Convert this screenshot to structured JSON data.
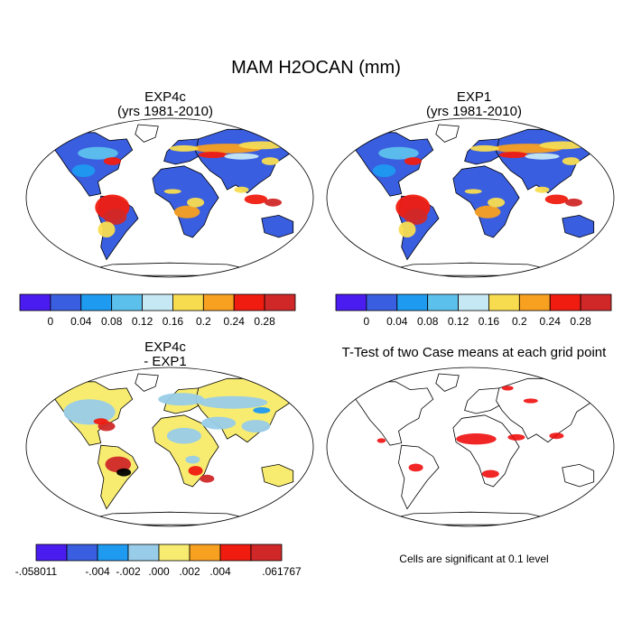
{
  "page": {
    "title": "MAM H2OCAN (mm)"
  },
  "chart_data": [
    {
      "type": "map",
      "title": "EXP4c",
      "subtitle": "(yrs 1981-2010)",
      "colorbar": {
        "colors": [
          "#4a1cf0",
          "#3a5ee0",
          "#1e9af0",
          "#5cc0ec",
          "#c6e8f4",
          "#f8dc50",
          "#f8a020",
          "#f01c10",
          "#d02828"
        ],
        "tick_labels": [
          "0",
          "0.04",
          "0.08",
          "0.12",
          "0.16",
          "0.2",
          "0.24",
          "0.28"
        ]
      }
    },
    {
      "type": "map",
      "title": "EXP1",
      "subtitle": "(yrs 1981-2010)",
      "colorbar": {
        "colors": [
          "#4a1cf0",
          "#3a5ee0",
          "#1e9af0",
          "#5cc0ec",
          "#c6e8f4",
          "#f8dc50",
          "#f8a020",
          "#f01c10",
          "#d02828"
        ],
        "tick_labels": [
          "0",
          "0.04",
          "0.08",
          "0.12",
          "0.16",
          "0.2",
          "0.24",
          "0.28"
        ]
      }
    },
    {
      "type": "map",
      "title": "EXP4c",
      "subtitle": "- EXP1",
      "colorbar": {
        "colors": [
          "#4a1cf0",
          "#3a5ee0",
          "#1e9af0",
          "#98cce8",
          "#f8ec70",
          "#f8a020",
          "#f01c10",
          "#d02828"
        ],
        "tick_labels": [
          "-.058011",
          "-.004",
          "-.002",
          ".000",
          ".002",
          ".004",
          ".061767"
        ]
      }
    },
    {
      "type": "map",
      "title": "T-Test of two Case means at each grid point",
      "note": "Cells are significant at 0.1 level"
    }
  ]
}
